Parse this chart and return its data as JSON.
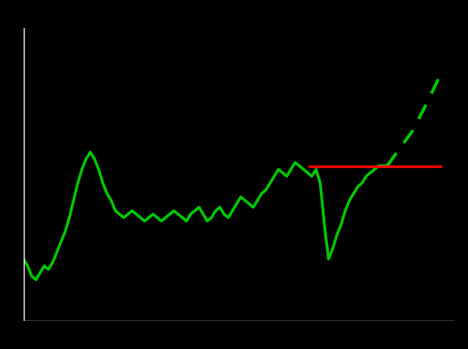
{
  "background_color": "#000000",
  "line_color": "#00cc00",
  "dashed_color": "#00cc00",
  "reference_line_color": "#ff0000",
  "axis_color": "#ffffff",
  "xlim": [
    0,
    100
  ],
  "ylim": [
    0,
    100
  ],
  "solid_x": [
    0,
    1,
    2,
    3,
    4,
    5,
    6,
    7,
    8,
    9,
    10,
    11,
    12,
    13,
    14,
    15,
    16,
    17,
    18,
    19,
    20,
    21,
    22,
    23,
    24,
    25,
    26,
    27,
    28,
    29,
    30,
    31,
    32,
    33,
    34,
    35,
    36,
    37,
    38,
    39,
    40,
    41,
    42,
    43,
    44,
    45,
    46,
    47,
    48,
    49,
    50,
    51,
    52,
    53,
    54,
    55,
    56,
    57,
    58,
    59,
    60,
    61,
    62,
    63,
    64,
    65,
    66,
    67,
    68,
    69,
    70,
    71,
    72,
    73,
    74,
    75,
    76,
    77,
    78,
    79,
    80,
    81,
    82,
    83,
    84,
    85,
    86,
    87
  ],
  "solid_y": [
    38,
    36,
    33,
    32,
    34,
    36,
    35,
    37,
    40,
    43,
    46,
    50,
    55,
    60,
    64,
    67,
    69,
    67,
    64,
    60,
    57,
    55,
    52,
    51,
    50,
    51,
    52,
    51,
    50,
    49,
    50,
    51,
    50,
    49,
    50,
    51,
    52,
    51,
    50,
    49,
    51,
    52,
    53,
    51,
    49,
    50,
    52,
    53,
    51,
    50,
    52,
    54,
    56,
    55,
    54,
    53,
    55,
    57,
    58,
    60,
    62,
    64,
    63,
    62,
    64,
    66,
    65,
    64,
    63,
    62,
    64,
    60,
    48,
    38,
    41,
    45,
    48,
    52,
    55,
    57,
    59,
    60,
    62,
    63,
    64,
    65,
    65,
    65
  ],
  "dashed_x": [
    87,
    90,
    93,
    96,
    100
  ],
  "dashed_y": [
    65,
    70,
    75,
    82,
    92
  ],
  "ref_line_y": 65,
  "ref_line_x_start": 68,
  "ref_line_x_end": 100
}
